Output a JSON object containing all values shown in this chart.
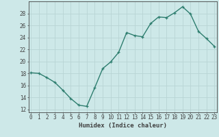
{
  "x": [
    0,
    1,
    2,
    3,
    4,
    5,
    6,
    7,
    8,
    9,
    10,
    11,
    12,
    13,
    14,
    15,
    16,
    17,
    18,
    19,
    20,
    21,
    22,
    23
  ],
  "y": [
    18.1,
    18.0,
    17.3,
    16.5,
    15.2,
    13.8,
    12.7,
    12.5,
    15.6,
    18.8,
    19.9,
    21.5,
    24.8,
    24.3,
    24.1,
    26.3,
    27.4,
    27.3,
    28.1,
    29.1,
    27.9,
    25.0,
    23.8,
    22.5
  ],
  "line_color": "#2d7d6e",
  "marker": "+",
  "bg_color": "#cde8e8",
  "grid_color": "#b8d4d4",
  "axis_color": "#404040",
  "xlabel": "Humidex (Indice chaleur)",
  "ylim": [
    11.5,
    30.0
  ],
  "xlim": [
    -0.3,
    23.3
  ],
  "yticks": [
    12,
    14,
    16,
    18,
    20,
    22,
    24,
    26,
    28
  ],
  "xticks": [
    0,
    1,
    2,
    3,
    4,
    5,
    6,
    7,
    8,
    9,
    10,
    11,
    12,
    13,
    14,
    15,
    16,
    17,
    18,
    19,
    20,
    21,
    22,
    23
  ],
  "xlabel_fontsize": 6.5,
  "tick_fontsize": 5.5,
  "linewidth": 1.0,
  "markersize": 3.5,
  "markeredgewidth": 0.9
}
